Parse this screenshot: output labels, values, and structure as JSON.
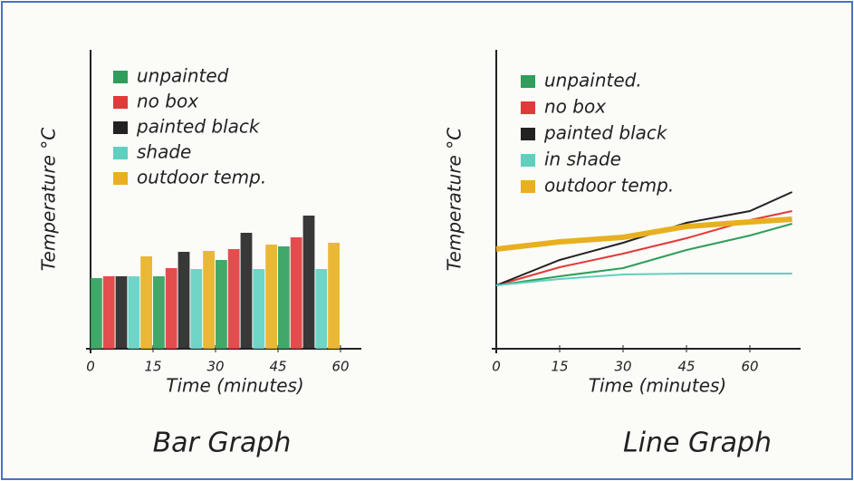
{
  "chart_data": [
    {
      "type": "bar",
      "title": "Bar Graph",
      "x_label": "Time (minutes)",
      "y_label": "Temperature °C",
      "x": [
        0,
        15,
        30,
        45
      ],
      "xlim": [
        0,
        65
      ],
      "xticks": [
        0,
        15,
        30,
        45,
        60
      ],
      "ylim": [
        0,
        33
      ],
      "series": [
        {
          "name": "unpainted",
          "color": "#2e9e5a",
          "values": [
            7.8,
            8.0,
            9.8,
            11.3
          ]
        },
        {
          "name": "no box",
          "color": "#e03a3a",
          "values": [
            8.0,
            8.9,
            11.0,
            12.3
          ]
        },
        {
          "name": "painted black",
          "color": "#222222",
          "values": [
            8.0,
            10.7,
            12.8,
            14.7
          ]
        },
        {
          "name": "shade",
          "color": "#5fd0c0",
          "values": [
            8.0,
            8.8,
            8.8,
            8.8
          ]
        },
        {
          "name": "outdoor temp.",
          "color": "#e8b020",
          "values": [
            10.2,
            10.8,
            11.5,
            11.7
          ]
        }
      ]
    },
    {
      "type": "line",
      "title": "Line Graph",
      "x_label": "Time (minutes)",
      "y_label": "Temperature °C",
      "x": [
        0,
        15,
        30,
        45,
        60,
        70
      ],
      "xlim": [
        0,
        72
      ],
      "xticks": [
        0,
        15,
        30,
        45,
        60
      ],
      "ylim": [
        0,
        33
      ],
      "series": [
        {
          "name": "unpainted.",
          "color": "#2e9e5a",
          "values": [
            7.0,
            8.0,
            8.9,
            10.9,
            12.5,
            13.8
          ]
        },
        {
          "name": "no box",
          "color": "#e03a3a",
          "values": [
            7.0,
            9.0,
            10.5,
            12.2,
            14.2,
            15.2
          ]
        },
        {
          "name": "painted black",
          "color": "#222222",
          "values": [
            7.0,
            9.8,
            11.7,
            13.9,
            15.2,
            17.3
          ]
        },
        {
          "name": "in shade",
          "color": "#5fd0c0",
          "values": [
            7.0,
            7.7,
            8.2,
            8.3,
            8.3,
            8.3
          ]
        },
        {
          "name": "outdoor temp.",
          "color": "#e8b020",
          "values": [
            11.0,
            11.8,
            12.3,
            13.5,
            14.0,
            14.3
          ]
        }
      ]
    }
  ]
}
